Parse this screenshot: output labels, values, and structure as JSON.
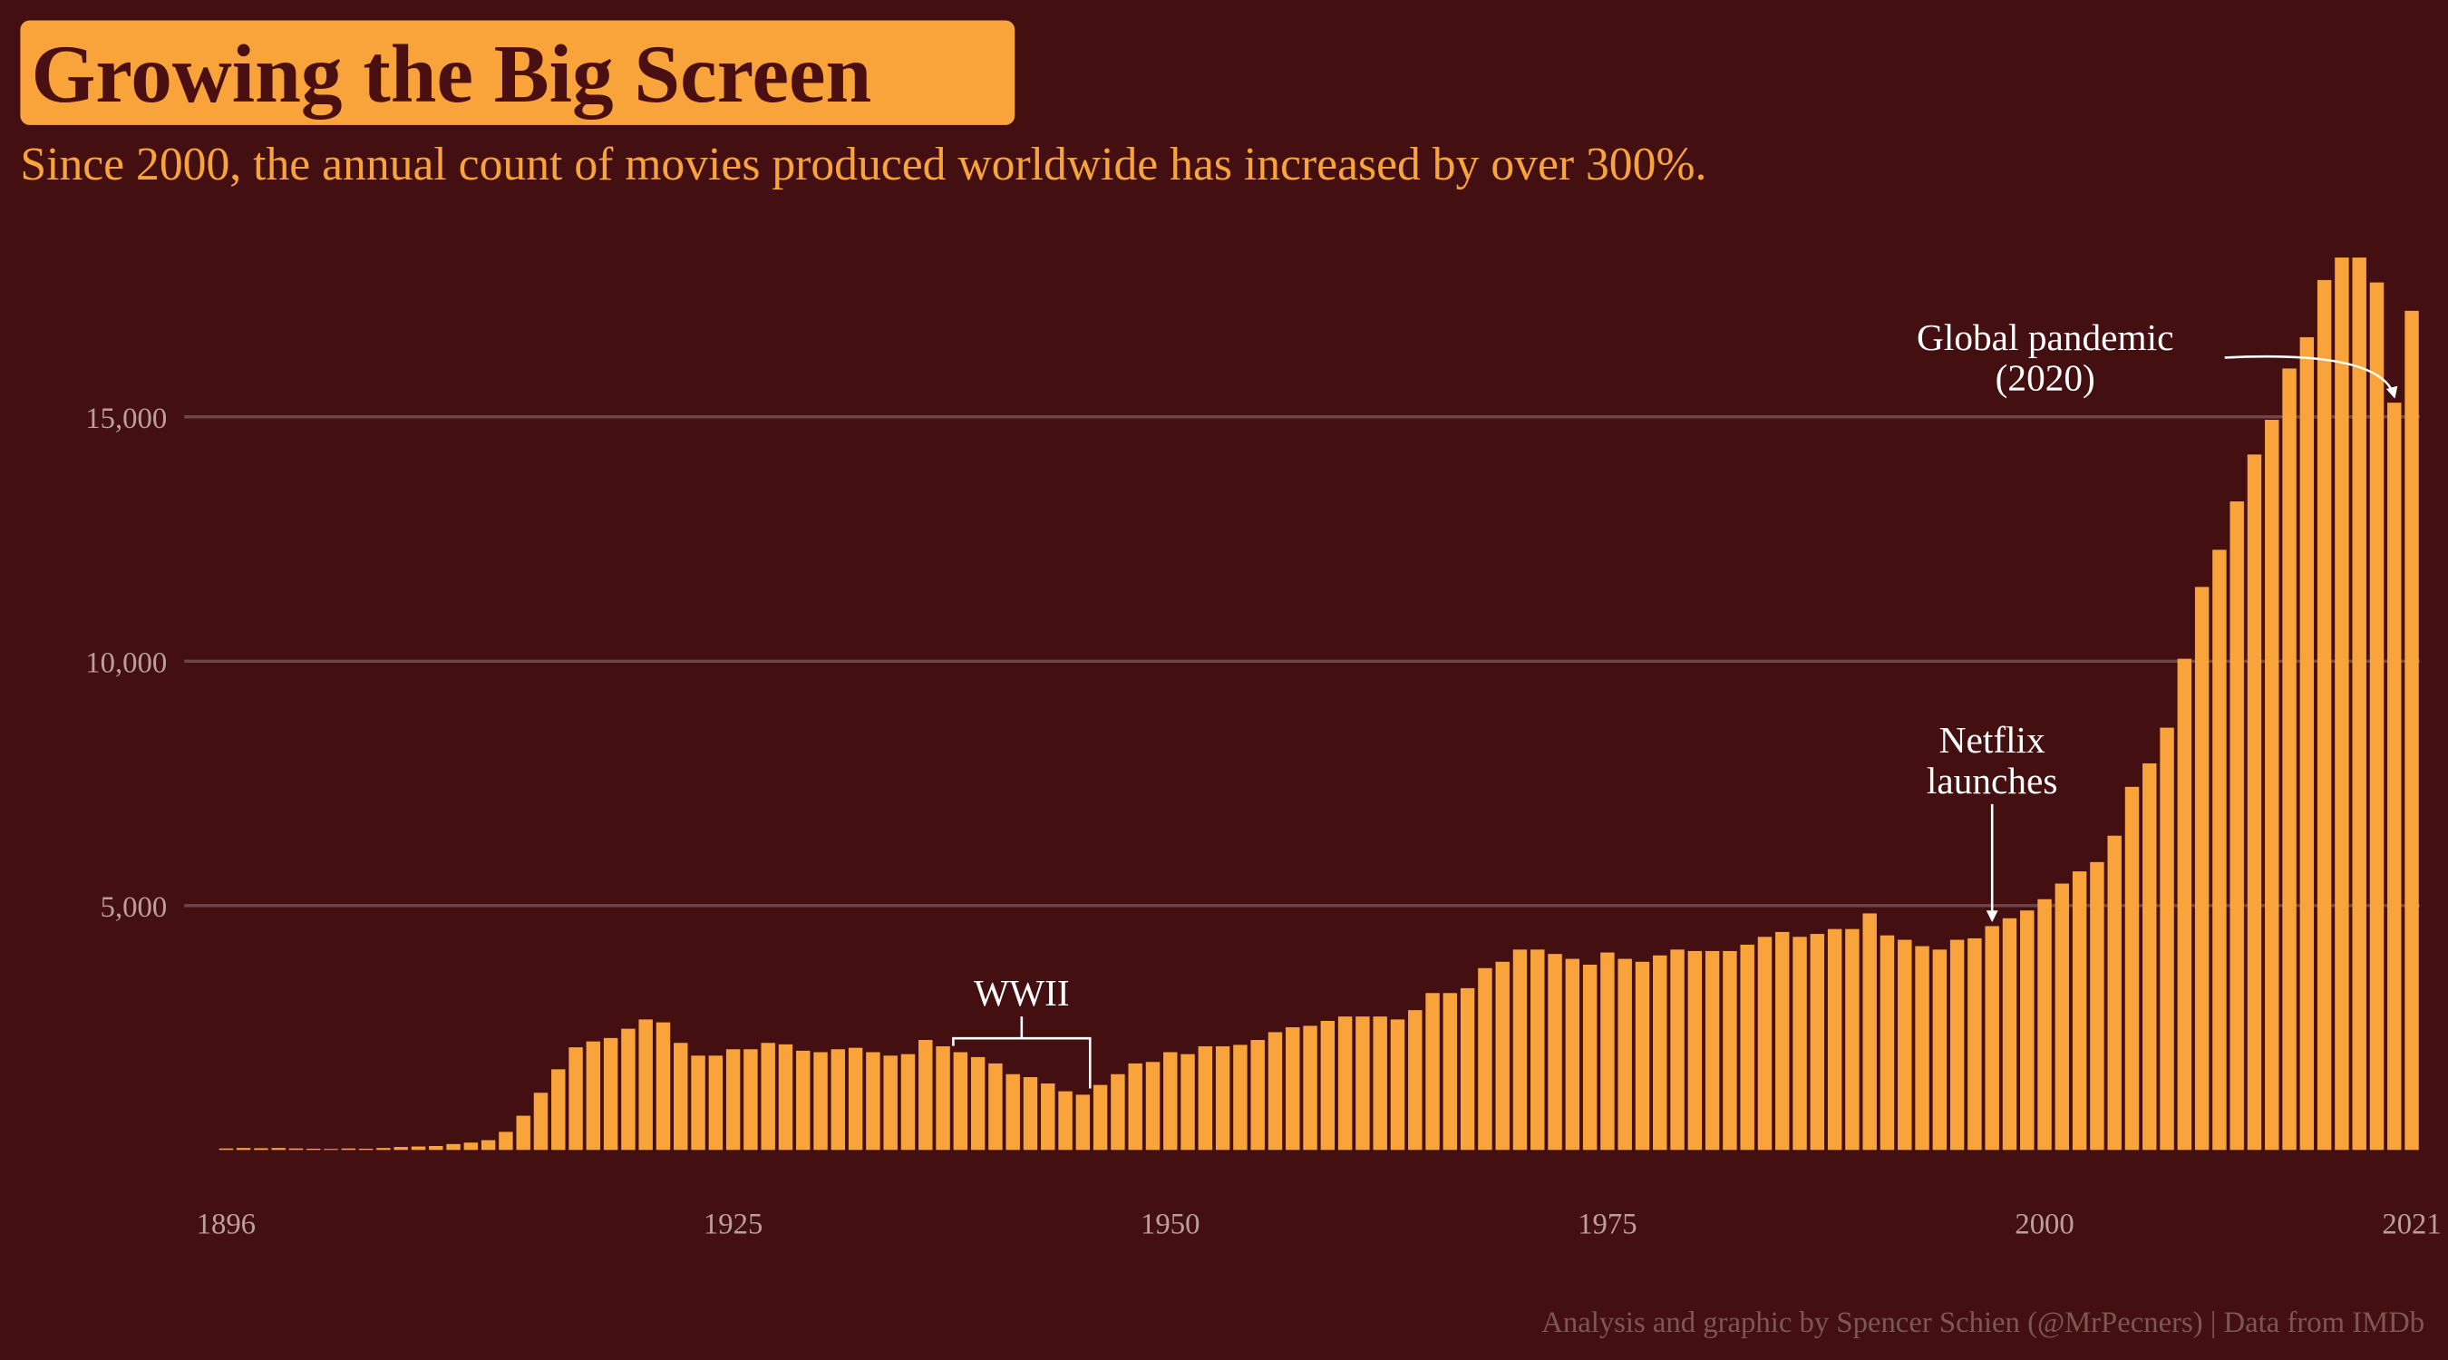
{
  "chart_data": {
    "type": "bar",
    "title": "Growing the Big Screen",
    "subtitle": "Since 2000, the annual count of movies produced worldwide has increased by over 300%.",
    "caption": "Analysis and graphic by Spencer Schien (@MrPecners) | Data from IMDb",
    "color": "#f9a43a",
    "x": [
      1896,
      1897,
      1898,
      1899,
      1900,
      1901,
      1902,
      1903,
      1904,
      1905,
      1906,
      1907,
      1908,
      1909,
      1910,
      1911,
      1912,
      1913,
      1914,
      1915,
      1916,
      1917,
      1918,
      1919,
      1920,
      1921,
      1922,
      1923,
      1924,
      1925,
      1926,
      1927,
      1928,
      1929,
      1930,
      1931,
      1932,
      1933,
      1934,
      1935,
      1936,
      1937,
      1938,
      1939,
      1940,
      1941,
      1942,
      1943,
      1944,
      1945,
      1946,
      1947,
      1948,
      1949,
      1950,
      1951,
      1952,
      1953,
      1954,
      1955,
      1956,
      1957,
      1958,
      1959,
      1960,
      1961,
      1962,
      1963,
      1964,
      1965,
      1966,
      1967,
      1968,
      1969,
      1970,
      1971,
      1972,
      1973,
      1974,
      1975,
      1976,
      1977,
      1978,
      1979,
      1980,
      1981,
      1982,
      1983,
      1984,
      1985,
      1986,
      1987,
      1988,
      1989,
      1990,
      1991,
      1992,
      1993,
      1994,
      1995,
      1996,
      1997,
      1998,
      1999,
      2000,
      2001,
      2002,
      2003,
      2004,
      2005,
      2006,
      2007,
      2008,
      2009,
      2010,
      2011,
      2012,
      2013,
      2014,
      2015,
      2016,
      2017,
      2018,
      2019,
      2020,
      2021
    ],
    "values": [
      30,
      40,
      35,
      40,
      30,
      25,
      20,
      30,
      25,
      40,
      60,
      70,
      80,
      120,
      150,
      200,
      370,
      700,
      1170,
      1650,
      2100,
      2220,
      2290,
      2480,
      2670,
      2610,
      2190,
      1930,
      1930,
      2060,
      2060,
      2190,
      2160,
      2030,
      2000,
      2060,
      2090,
      2000,
      1930,
      1960,
      2250,
      2120,
      2000,
      1900,
      1770,
      1550,
      1490,
      1360,
      1200,
      1130,
      1330,
      1550,
      1770,
      1800,
      2000,
      1960,
      2120,
      2120,
      2150,
      2250,
      2410,
      2510,
      2540,
      2640,
      2730,
      2730,
      2730,
      2670,
      2860,
      3210,
      3210,
      3310,
      3720,
      3850,
      4100,
      4100,
      4010,
      3910,
      3790,
      4040,
      3910,
      3850,
      3980,
      4100,
      4070,
      4070,
      4070,
      4200,
      4360,
      4460,
      4360,
      4420,
      4520,
      4520,
      4840,
      4390,
      4300,
      4170,
      4100,
      4300,
      4330,
      4580,
      4740,
      4900,
      5130,
      5450,
      5700,
      5890,
      6430,
      7430,
      7910,
      8640,
      10050,
      11520,
      12280,
      13270,
      14230,
      14940,
      15990,
      16630,
      17800,
      18260,
      18260,
      17750,
      15290,
      17170
    ],
    "xlim": [
      1894.5,
      2022
    ],
    "xticks": [
      1896,
      1925,
      1950,
      1975,
      2000,
      2021
    ],
    "ylim": [
      0,
      18500
    ],
    "yticks": [
      {
        "value": 5000,
        "label": "5,000"
      },
      {
        "value": 10000,
        "label": "10,000"
      },
      {
        "value": 15000,
        "label": "15,000"
      }
    ],
    "grid": true,
    "annotations": [
      {
        "text": [
          "WWII"
        ],
        "x": [
          1938,
          1945
        ]
      },
      {
        "text": [
          "Netflix",
          "launches"
        ],
        "x": 1997
      },
      {
        "text": [
          "Global pandemic",
          "(2020)"
        ],
        "x": 2020
      }
    ]
  }
}
